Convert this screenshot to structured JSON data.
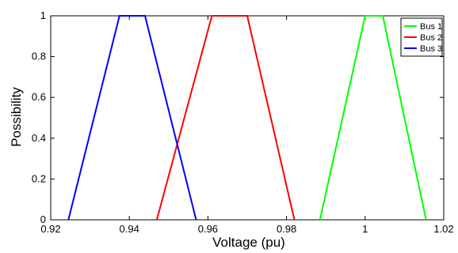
{
  "chart_data": {
    "type": "line",
    "title": "",
    "xlabel": "Voltage (pu)",
    "ylabel": "Possibility",
    "xlim": [
      0.92,
      1.02
    ],
    "ylim": [
      0,
      1
    ],
    "xticks": [
      "0.92",
      "0.94",
      "0.96",
      "0.98",
      "1",
      "1.02"
    ],
    "xtick_values": [
      0.92,
      0.94,
      0.96,
      0.98,
      1.0,
      1.02
    ],
    "yticks": [
      "0",
      "0.2",
      "0.4",
      "0.6",
      "0.8",
      "1"
    ],
    "ytick_values": [
      0,
      0.2,
      0.4,
      0.6,
      0.8,
      1
    ],
    "grid": false,
    "legend_position": "top-right",
    "series": [
      {
        "name": "Bus 1",
        "color": "#00ff00",
        "x": [
          0.9885,
          1.0,
          1.0045,
          1.0155
        ],
        "y": [
          0,
          1,
          1,
          0
        ]
      },
      {
        "name": "Bus 2",
        "color": "#ff0000",
        "x": [
          0.947,
          0.961,
          0.97,
          0.982
        ],
        "y": [
          0,
          1,
          1,
          0
        ]
      },
      {
        "name": "Bus 3",
        "color": "#0000ff",
        "x": [
          0.9245,
          0.9375,
          0.944,
          0.957
        ],
        "y": [
          0,
          1,
          1,
          0
        ]
      }
    ]
  }
}
